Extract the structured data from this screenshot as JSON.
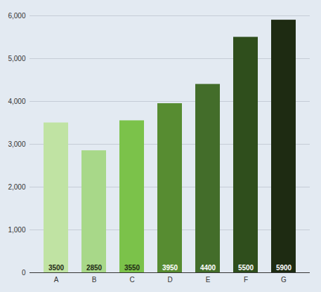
{
  "chart_data": {
    "type": "bar",
    "categories": [
      "A",
      "B",
      "C",
      "D",
      "E",
      "F",
      "G"
    ],
    "values": [
      3500,
      2850,
      3550,
      3950,
      4400,
      5500,
      5900
    ],
    "colors": [
      "#c0e3a3",
      "#a8d889",
      "#7bc24a",
      "#578c31",
      "#436d2a",
      "#2f4e1c",
      "#1e2b12"
    ],
    "ylim": [
      0,
      6000
    ],
    "yticks": [
      0,
      1000,
      2000,
      3000,
      4000,
      5000,
      6000
    ],
    "grid": true,
    "data_labels": true
  }
}
